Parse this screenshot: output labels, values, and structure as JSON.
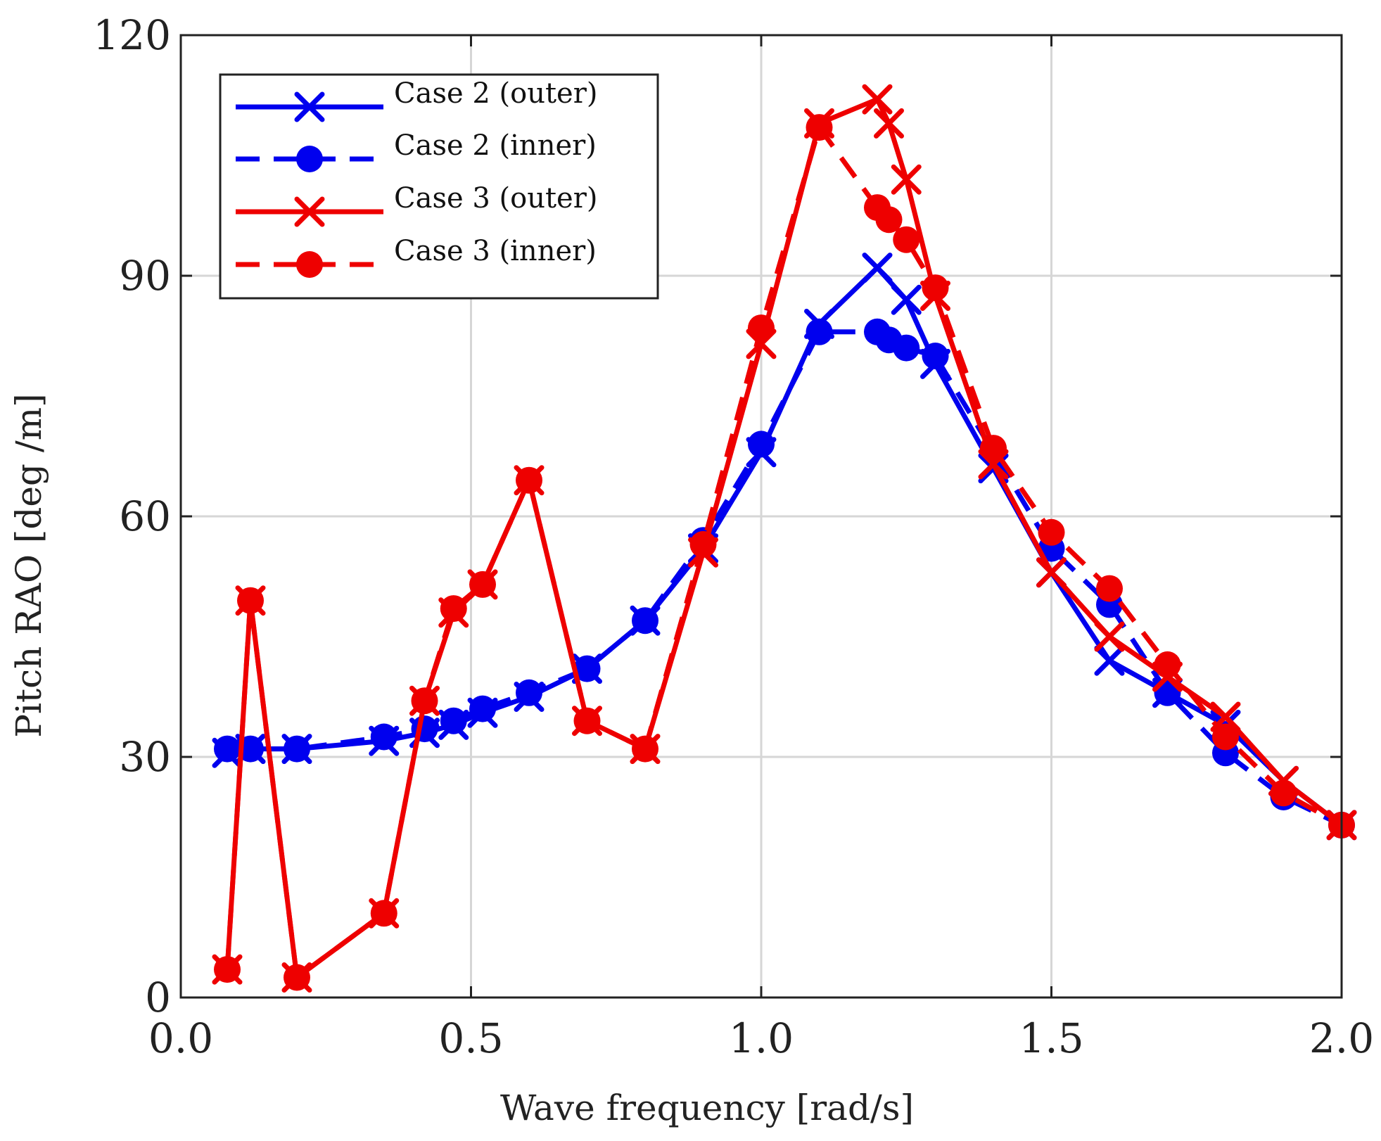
{
  "chart_data": {
    "type": "line",
    "title": "",
    "xlabel": "Wave frequency [rad/s]",
    "ylabel": "Pitch RAO [deg /m]",
    "xlim": [
      0,
      2
    ],
    "ylim": [
      0,
      120
    ],
    "xticks": [
      "0.0",
      "0.5",
      "1.0",
      "1.5",
      "2.0"
    ],
    "xtick_values": [
      0,
      0.5,
      1.0,
      1.5,
      2.0
    ],
    "yticks": [
      "0",
      "30",
      "60",
      "90",
      "120"
    ],
    "ytick_values": [
      0,
      30,
      60,
      90,
      120
    ],
    "grid": true,
    "legend_position": "top-left",
    "series": [
      {
        "name": "Case 2 (outer)",
        "color": "#0000ee",
        "line": "solid",
        "marker": "x",
        "x": [
          0.08,
          0.12,
          0.2,
          0.35,
          0.42,
          0.47,
          0.52,
          0.6,
          0.7,
          0.8,
          0.9,
          1.0,
          1.1,
          1.2,
          1.25,
          1.3,
          1.4,
          1.5,
          1.6,
          1.7,
          1.8,
          1.9,
          2.0
        ],
        "y": [
          30.5,
          31,
          31,
          32,
          33,
          34,
          35.5,
          37.5,
          41,
          47,
          56,
          68,
          84,
          91,
          87,
          79,
          66,
          53,
          42,
          38,
          34,
          27,
          21.5
        ]
      },
      {
        "name": "Case 2 (inner)",
        "color": "#0000ee",
        "line": "dashed",
        "marker": "o",
        "x": [
          0.08,
          0.12,
          0.2,
          0.35,
          0.42,
          0.47,
          0.52,
          0.6,
          0.7,
          0.8,
          0.9,
          1.0,
          1.1,
          1.2,
          1.22,
          1.25,
          1.3,
          1.4,
          1.5,
          1.6,
          1.7,
          1.8,
          1.9,
          2.0
        ],
        "y": [
          31,
          31,
          31,
          32.5,
          33.5,
          34.5,
          36,
          38,
          41,
          47,
          57,
          69,
          83,
          83,
          82,
          81,
          80,
          68,
          56,
          49,
          38,
          30.5,
          25,
          21.5
        ]
      },
      {
        "name": "Case 3 (outer)",
        "color": "#ee0000",
        "line": "solid",
        "marker": "x",
        "x": [
          0.08,
          0.12,
          0.2,
          0.35,
          0.42,
          0.47,
          0.52,
          0.6,
          0.7,
          0.8,
          0.9,
          1.0,
          1.1,
          1.2,
          1.22,
          1.25,
          1.3,
          1.4,
          1.5,
          1.6,
          1.7,
          1.8,
          1.9,
          2.0
        ],
        "y": [
          3.5,
          49.5,
          2.5,
          10.5,
          37,
          48,
          51.5,
          64.5,
          34.5,
          31,
          55.5,
          81.5,
          109,
          112,
          109,
          102,
          87.5,
          66.5,
          53,
          45,
          40,
          35,
          27,
          21.5
        ]
      },
      {
        "name": "Case 3 (inner)",
        "color": "#ee0000",
        "line": "dashed",
        "marker": "o",
        "x": [
          0.08,
          0.12,
          0.2,
          0.35,
          0.42,
          0.47,
          0.52,
          0.6,
          0.7,
          0.8,
          0.9,
          1.0,
          1.1,
          1.2,
          1.22,
          1.25,
          1.3,
          1.4,
          1.5,
          1.6,
          1.7,
          1.8,
          1.9,
          2.0
        ],
        "y": [
          3.5,
          49.5,
          2.5,
          10.5,
          37,
          48.5,
          51.5,
          64.5,
          34.5,
          31,
          56.5,
          83.5,
          108.5,
          98.5,
          97,
          94.5,
          88.5,
          68.5,
          58,
          51,
          41.5,
          32.5,
          25.5,
          21.5
        ]
      }
    ]
  }
}
